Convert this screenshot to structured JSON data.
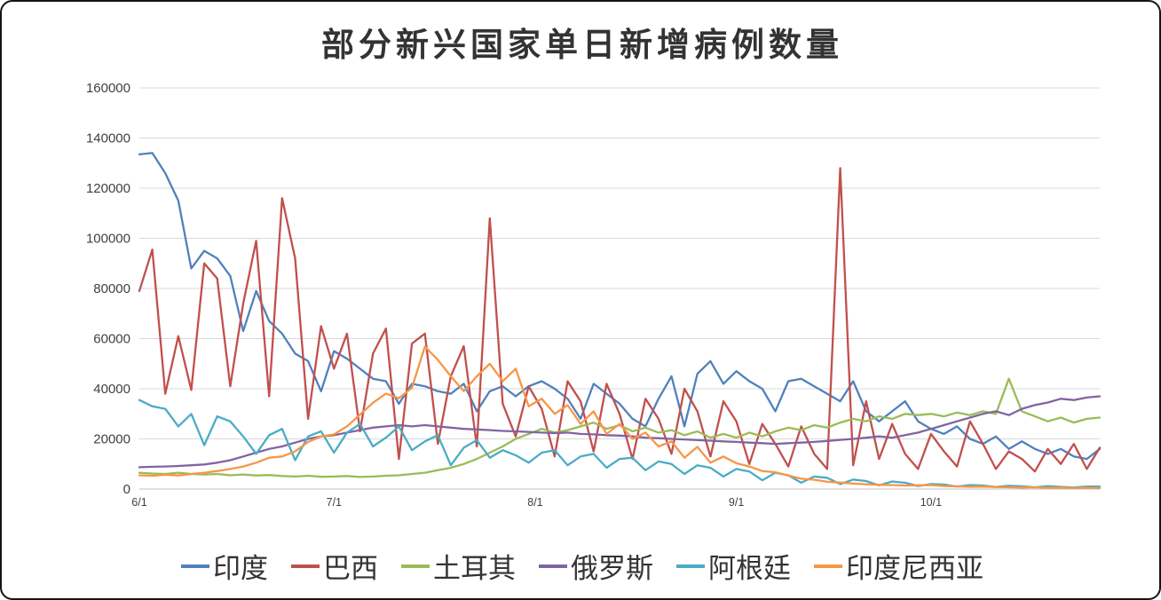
{
  "chart_data": {
    "type": "line",
    "title": "部分新兴国家单日新增病例数量",
    "xlabel": "",
    "ylabel": "",
    "ylim": [
      0,
      160000
    ],
    "grid": "horizontal",
    "legend_position": "bottom",
    "x_max_day": 148,
    "sample_interval_days": 2,
    "x_ticks": [
      {
        "day": 0,
        "label": "6/1"
      },
      {
        "day": 30,
        "label": "7/1"
      },
      {
        "day": 61,
        "label": "8/1"
      },
      {
        "day": 92,
        "label": "9/1"
      },
      {
        "day": 122,
        "label": "10/1"
      }
    ],
    "y_ticks": [
      {
        "value": 0,
        "label": "0"
      },
      {
        "value": 20000,
        "label": "20000"
      },
      {
        "value": 40000,
        "label": "40000"
      },
      {
        "value": 60000,
        "label": "60000"
      },
      {
        "value": 80000,
        "label": "80000"
      },
      {
        "value": 100000,
        "label": "100000"
      },
      {
        "value": 120000,
        "label": "120000"
      },
      {
        "value": 140000,
        "label": "140000"
      },
      {
        "value": 160000,
        "label": "160000"
      }
    ],
    "grid_color": "#D9D9D9",
    "axis_color": "#BFBFBF",
    "label_color": "#404040",
    "title_color": "#333333",
    "series": [
      {
        "key": "india",
        "name": "印度",
        "color": "#4F81BD",
        "values": [
          133500,
          134000,
          126000,
          115000,
          88000,
          95000,
          92000,
          85000,
          63000,
          79000,
          67000,
          62000,
          54000,
          51000,
          39000,
          55000,
          52000,
          48000,
          44000,
          43000,
          34000,
          42000,
          41000,
          39000,
          38000,
          42000,
          31000,
          39000,
          41000,
          37000,
          41000,
          43000,
          40000,
          36000,
          28000,
          42000,
          38000,
          34000,
          28000,
          25000,
          36000,
          45000,
          25000,
          46000,
          51000,
          42000,
          47000,
          43000,
          40000,
          31000,
          43000,
          44000,
          41000,
          38000,
          35000,
          43000,
          31000,
          27000,
          31000,
          35000,
          27000,
          24000,
          22000,
          25000,
          20000,
          18000,
          21000,
          16000,
          19000,
          16000,
          14000,
          16000,
          13000,
          12000,
          16000
        ]
      },
      {
        "key": "brazil",
        "name": "巴西",
        "color": "#C0504D",
        "values": [
          79000,
          95500,
          38000,
          61000,
          39500,
          90000,
          84000,
          41000,
          74000,
          99000,
          37000,
          116000,
          92000,
          28000,
          65000,
          48000,
          62000,
          23000,
          54000,
          64000,
          12000,
          58000,
          62000,
          18000,
          45000,
          57000,
          17000,
          108000,
          34000,
          21000,
          41000,
          32000,
          13000,
          43000,
          35000,
          15000,
          42000,
          30000,
          12000,
          36000,
          28000,
          14000,
          40000,
          31000,
          13000,
          35000,
          27000,
          10000,
          26000,
          18000,
          9000,
          25000,
          14000,
          8000,
          128000,
          9500,
          35000,
          12000,
          26000,
          14000,
          8000,
          22000,
          15000,
          9000,
          27000,
          18000,
          8000,
          15000,
          12000,
          7000,
          16000,
          10000,
          18000,
          8000,
          16500
        ]
      },
      {
        "key": "turkey",
        "name": "土耳其",
        "color": "#9BBB59",
        "values": [
          6500,
          6200,
          6000,
          6500,
          6000,
          5800,
          6000,
          5500,
          5800,
          5400,
          5600,
          5200,
          5000,
          5300,
          4900,
          5000,
          5200,
          4800,
          5000,
          5300,
          5500,
          6000,
          6500,
          7500,
          8500,
          10000,
          12000,
          14500,
          17000,
          20000,
          22000,
          24000,
          22500,
          23500,
          25000,
          26500,
          24000,
          25500,
          23000,
          24500,
          22500,
          23500,
          21500,
          23000,
          20500,
          22000,
          20500,
          22500,
          21000,
          23000,
          24500,
          23500,
          25500,
          24500,
          26500,
          28000,
          27000,
          29000,
          28000,
          30000,
          29500,
          30000,
          29000,
          30500,
          29500,
          31000,
          30000,
          44000,
          31000,
          29000,
          27000,
          28500,
          26500,
          28000,
          28500
        ]
      },
      {
        "key": "russia",
        "name": "俄罗斯",
        "color": "#8064A2",
        "values": [
          8700,
          8900,
          9000,
          9200,
          9500,
          9800,
          10500,
          11500,
          13000,
          14500,
          16000,
          17000,
          18500,
          20000,
          21000,
          21500,
          22500,
          23500,
          24500,
          25000,
          25500,
          25000,
          25500,
          25000,
          24500,
          24000,
          23800,
          23500,
          23200,
          23000,
          22800,
          22500,
          22300,
          22500,
          22000,
          21800,
          21500,
          21300,
          21000,
          20500,
          20300,
          20000,
          19800,
          19500,
          19300,
          19000,
          18800,
          18500,
          18300,
          18000,
          18300,
          18500,
          18800,
          19200,
          19600,
          20000,
          20500,
          21000,
          20500,
          21500,
          22500,
          24000,
          25500,
          27000,
          28500,
          30000,
          31000,
          29500,
          32000,
          33500,
          34500,
          36000,
          35500,
          36500,
          37000
        ]
      },
      {
        "key": "argentina",
        "name": "阿根廷",
        "color": "#4BACC6",
        "values": [
          35500,
          33000,
          32000,
          25000,
          30000,
          17500,
          29000,
          27000,
          21000,
          14000,
          21500,
          24000,
          11500,
          21000,
          23000,
          14500,
          22500,
          26000,
          17000,
          20500,
          25000,
          15500,
          19000,
          21500,
          9500,
          16500,
          19500,
          12500,
          15500,
          13500,
          10500,
          14500,
          15500,
          9500,
          13000,
          14000,
          8500,
          12000,
          12500,
          7500,
          11000,
          10000,
          6000,
          9500,
          8500,
          5000,
          8000,
          7000,
          3500,
          6500,
          5500,
          2500,
          5000,
          4500,
          2000,
          3800,
          3200,
          1500,
          3000,
          2500,
          1200,
          2000,
          1800,
          1000,
          1600,
          1400,
          800,
          1300,
          1100,
          700,
          1200,
          900,
          600,
          1000,
          1000
        ]
      },
      {
        "key": "indonesia",
        "name": "印度尼西亚",
        "color": "#F79646",
        "values": [
          5500,
          5300,
          5700,
          5400,
          6000,
          6500,
          7200,
          8000,
          9000,
          10500,
          12500,
          13000,
          15000,
          18800,
          21000,
          21800,
          25000,
          29700,
          34400,
          38100,
          36200,
          40400,
          56800,
          51500,
          45000,
          39000,
          45000,
          50000,
          43000,
          48000,
          33000,
          36000,
          30000,
          33500,
          26000,
          31000,
          22000,
          26000,
          20000,
          22500,
          17000,
          19000,
          12500,
          16800,
          10500,
          13000,
          10300,
          9000,
          7200,
          6700,
          5400,
          4100,
          3700,
          2900,
          2600,
          2200,
          1900,
          1700,
          1600,
          1400,
          1500,
          1600,
          1200,
          1100,
          900,
          1000,
          800,
          700,
          600,
          700,
          500,
          600,
          400,
          500,
          400
        ]
      }
    ]
  }
}
